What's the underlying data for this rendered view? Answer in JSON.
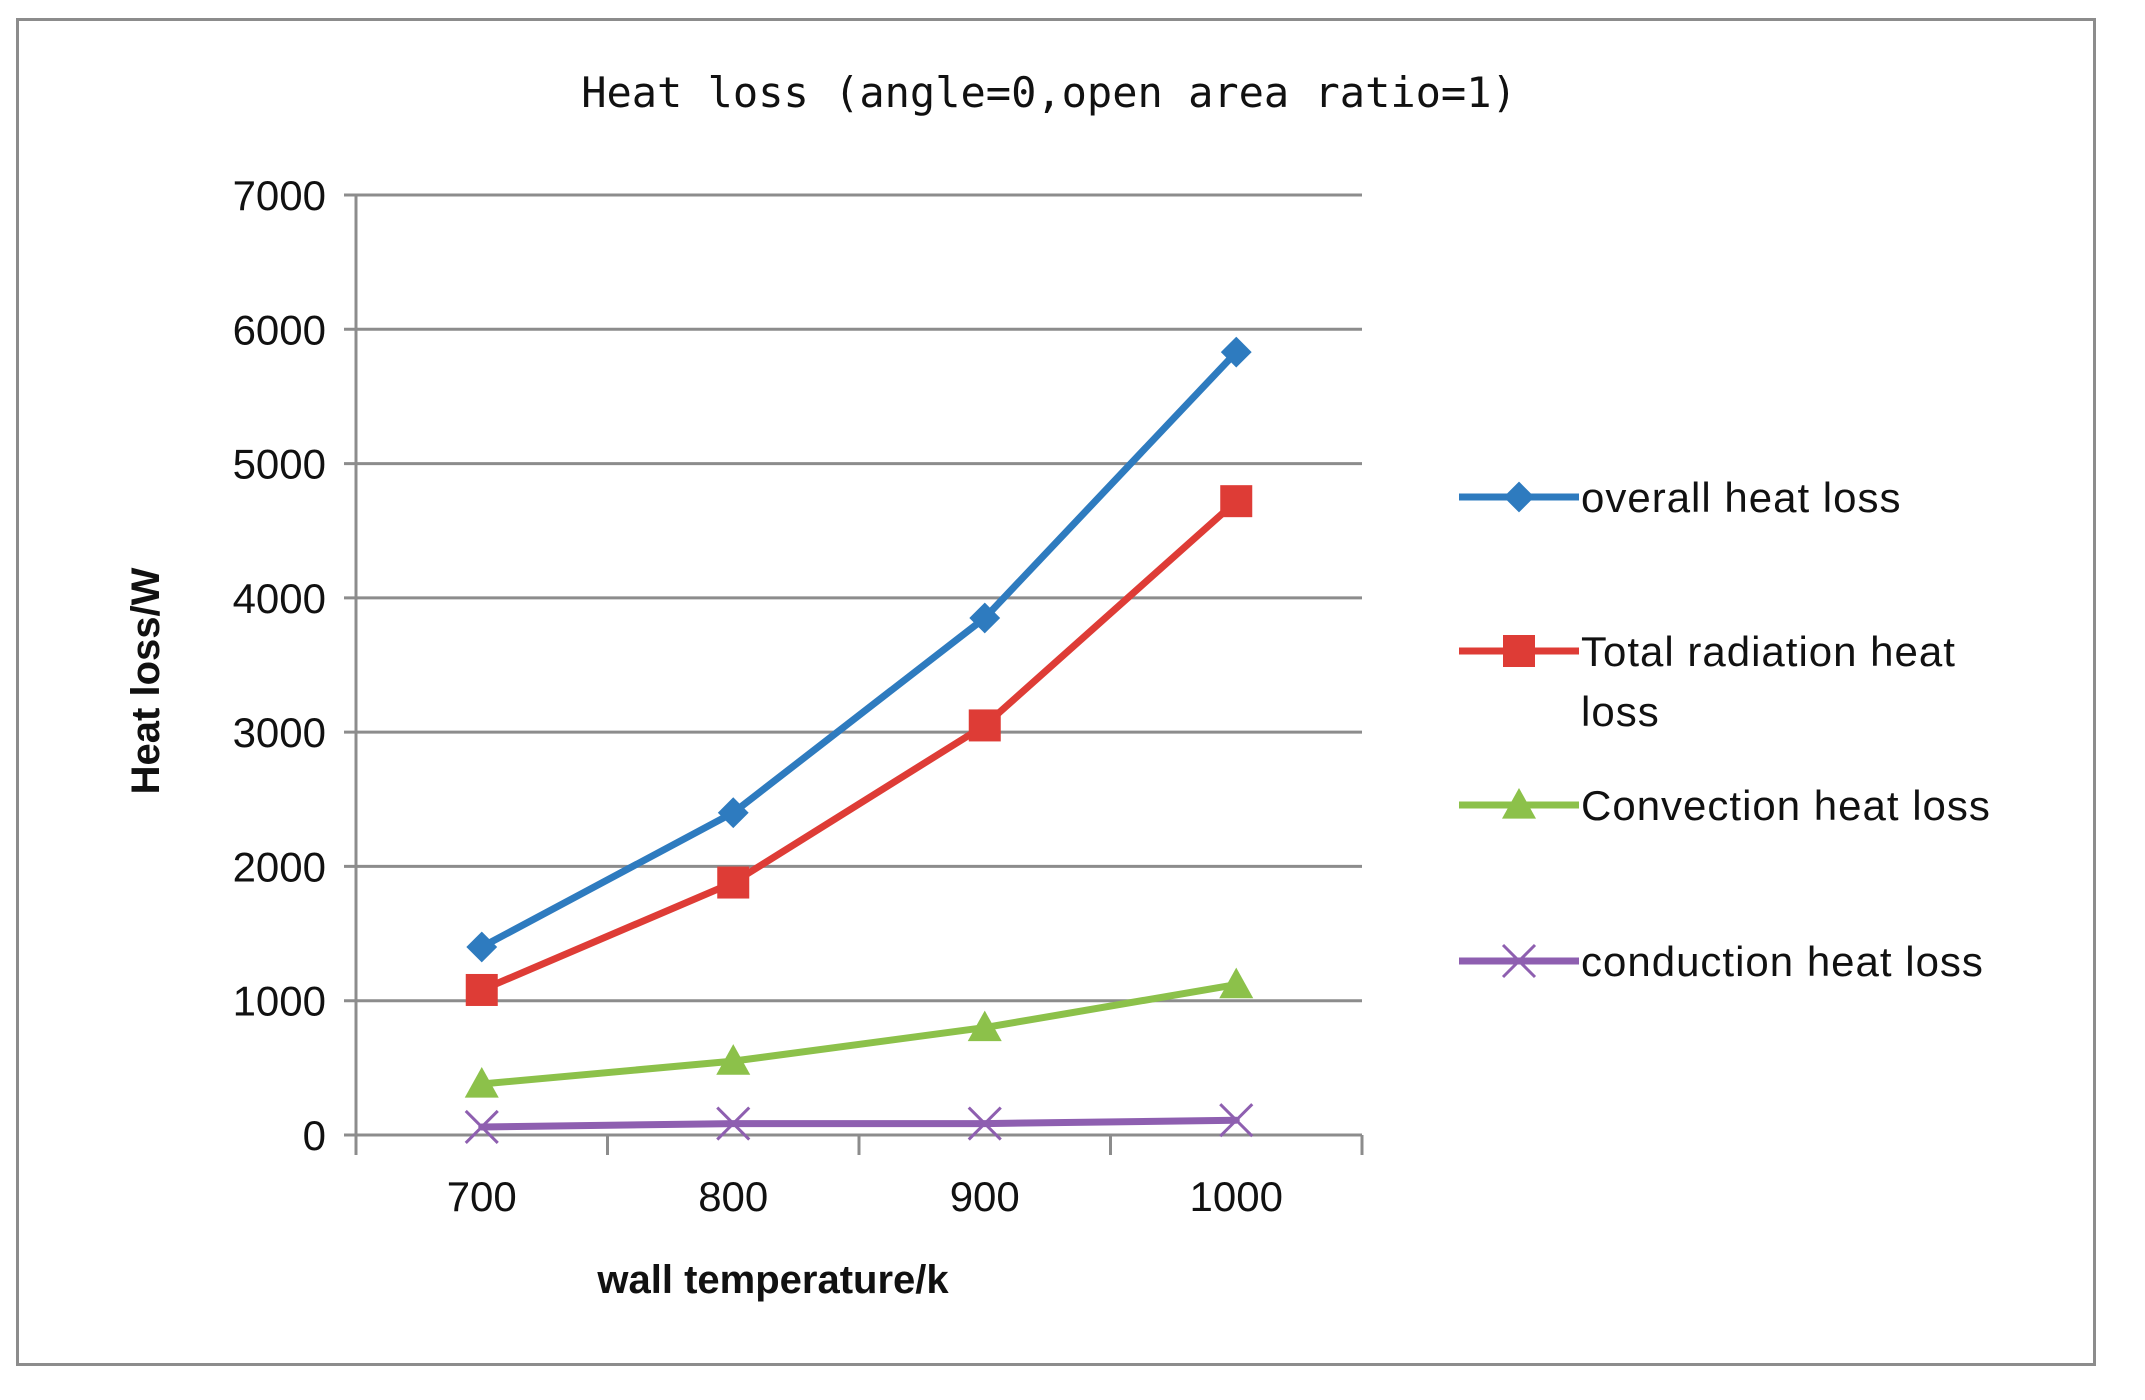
{
  "chart_data": {
    "type": "line",
    "title": "Heat loss (angle=0,open area ratio=1)",
    "xlabel": "wall temperature/k",
    "ylabel": "Heat loss/W",
    "categories": [
      "700",
      "800",
      "900",
      "1000"
    ],
    "ylim": [
      0,
      7000
    ],
    "yticks": [
      0,
      1000,
      2000,
      3000,
      4000,
      5000,
      6000,
      7000
    ],
    "grid": true,
    "legend_position": "right",
    "series": [
      {
        "name": "overall heat loss",
        "color": "#2e7bbf",
        "marker": "diamond",
        "values": [
          1400,
          2400,
          3850,
          5830
        ]
      },
      {
        "name": "Total radiation heat loss",
        "legend_lines": [
          "Total radiation heat",
          "loss"
        ],
        "color": "#de3c36",
        "marker": "square",
        "values": [
          1080,
          1880,
          3050,
          4720
        ]
      },
      {
        "name": "Convection heat loss",
        "color": "#8cc14a",
        "marker": "triangle",
        "values": [
          380,
          550,
          800,
          1120
        ]
      },
      {
        "name": "conduction heat loss",
        "color": "#8e5fb0",
        "marker": "x",
        "values": [
          60,
          85,
          85,
          110
        ]
      }
    ]
  }
}
